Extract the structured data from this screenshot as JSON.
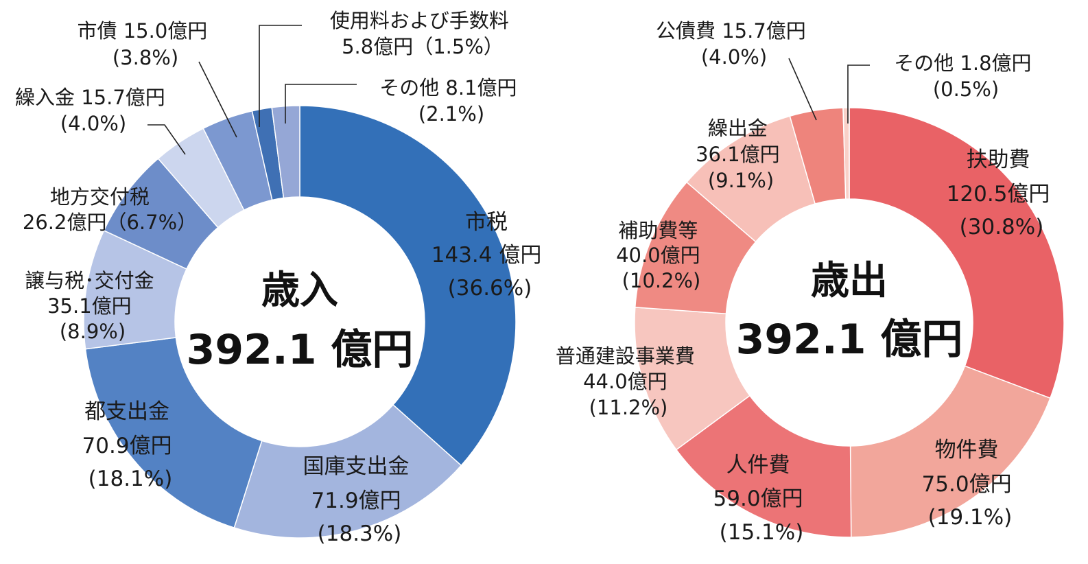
{
  "chart_data": [
    {
      "type": "pie",
      "title": "歳入",
      "total": "392.1 億円",
      "unit": "億円",
      "categories": [
        "市税",
        "国庫支出金",
        "都支出金",
        "譲与税･交付金",
        "地方交付税",
        "繰入金",
        "市債",
        "使用料および手数料",
        "その他"
      ],
      "values": [
        143.4,
        71.9,
        70.9,
        35.1,
        26.2,
        15.7,
        15.0,
        5.8,
        8.1
      ],
      "percent": [
        36.6,
        18.3,
        18.1,
        8.9,
        6.7,
        4.0,
        3.8,
        1.5,
        2.1
      ],
      "colors": [
        "#3370b8",
        "#a3b5de",
        "#5382c4",
        "#b6c4e6",
        "#6d8dc9",
        "#ccd6ee",
        "#7c98d0",
        "#3f70b4",
        "#95a7d6"
      ],
      "labels": [
        [
          "市税",
          "143.4 億円",
          "(36.6%)"
        ],
        [
          "国庫支出金",
          "71.9億円",
          "(18.3%)"
        ],
        [
          "都支出金",
          "70.9億円",
          "(18.1%)"
        ],
        [
          "譲与税･交付金",
          "35.1億円",
          "(8.9%)"
        ],
        [
          "地方交付税",
          "26.2億円（6.7%）"
        ],
        [
          "繰入金 15.7億円",
          "(4.0%)"
        ],
        [
          "市債  15.0億円",
          "(3.8%)"
        ],
        [
          "使用料および手数料",
          "5.8億円（1.5%）"
        ],
        [
          "その他 8.1億円",
          "(2.1%)"
        ]
      ]
    },
    {
      "type": "pie",
      "title": "歳出",
      "total": "392.1 億円",
      "unit": "億円",
      "categories": [
        "扶助費",
        "物件費",
        "人件費",
        "普通建設事業費",
        "補助費等",
        "繰出金",
        "公債費",
        "その他"
      ],
      "values": [
        120.5,
        75.0,
        59.0,
        44.0,
        40.0,
        36.1,
        15.7,
        1.8
      ],
      "percent": [
        30.8,
        19.1,
        15.1,
        11.2,
        10.2,
        9.1,
        4.0,
        0.5
      ],
      "colors": [
        "#e96266",
        "#f2a69b",
        "#ec7476",
        "#f7c6bf",
        "#ef8a83",
        "#f7c0b8",
        "#ee847c",
        "#f9d0c8"
      ],
      "labels": [
        [
          "扶助費",
          "120.5億円",
          "(30.8%)"
        ],
        [
          "物件費",
          "75.0億円",
          "(19.1%)"
        ],
        [
          "人件費",
          "59.0億円",
          "(15.1%)"
        ],
        [
          "普通建設事業費",
          "44.0億円",
          "(11.2%)"
        ],
        [
          "補助費等",
          "40.0億円",
          "(10.2%)"
        ],
        [
          "繰出金",
          "36.1億円",
          "(9.1%)"
        ],
        [
          "公債費 15.7億円",
          "(4.0%)"
        ],
        [
          "その他  1.8億円",
          "(0.5%)"
        ]
      ]
    }
  ]
}
